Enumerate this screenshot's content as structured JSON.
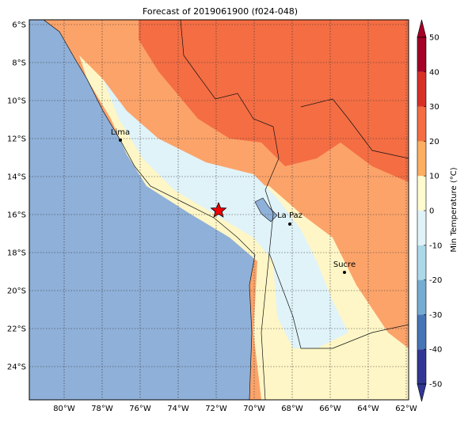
{
  "title": "Forecast of 2019061900 (f024-048)",
  "lat_ticks": [
    {
      "value": -6,
      "label": "6°S"
    },
    {
      "value": -8,
      "label": "8°S"
    },
    {
      "value": -10,
      "label": "10°S"
    },
    {
      "value": -12,
      "label": "12°S"
    },
    {
      "value": -14,
      "label": "14°S"
    },
    {
      "value": -16,
      "label": "16°S"
    },
    {
      "value": -18,
      "label": "18°S"
    },
    {
      "value": -20,
      "label": "20°S"
    },
    {
      "value": -22,
      "label": "22°S"
    },
    {
      "value": -24,
      "label": "24°S"
    }
  ],
  "lon_ticks": [
    {
      "value": -80,
      "label": "80°W"
    },
    {
      "value": -78,
      "label": "78°W"
    },
    {
      "value": -76,
      "label": "76°W"
    },
    {
      "value": -74,
      "label": "74°W"
    },
    {
      "value": -72,
      "label": "72°W"
    },
    {
      "value": -70,
      "label": "70°W"
    },
    {
      "value": -68,
      "label": "68°W"
    },
    {
      "value": -66,
      "label": "66°W"
    },
    {
      "value": -64,
      "label": "64°W"
    },
    {
      "value": -62,
      "label": "62°W"
    }
  ],
  "grid": true,
  "cities": [
    "Lima",
    "La Paz",
    "Sucre"
  ],
  "colorbar": {
    "label": "Min Temperature (°C)",
    "ticks": [
      -50,
      -40,
      -30,
      -20,
      -10,
      0,
      10,
      20,
      30,
      40,
      50
    ],
    "lim": [
      -50,
      50
    ],
    "colors": [
      "#313695",
      "#4575b4",
      "#74add1",
      "#abd9e9",
      "#e0f3f8",
      "#fefbcf",
      "#fdae61",
      "#f46d43",
      "#d73027",
      "#a50026"
    ]
  }
}
